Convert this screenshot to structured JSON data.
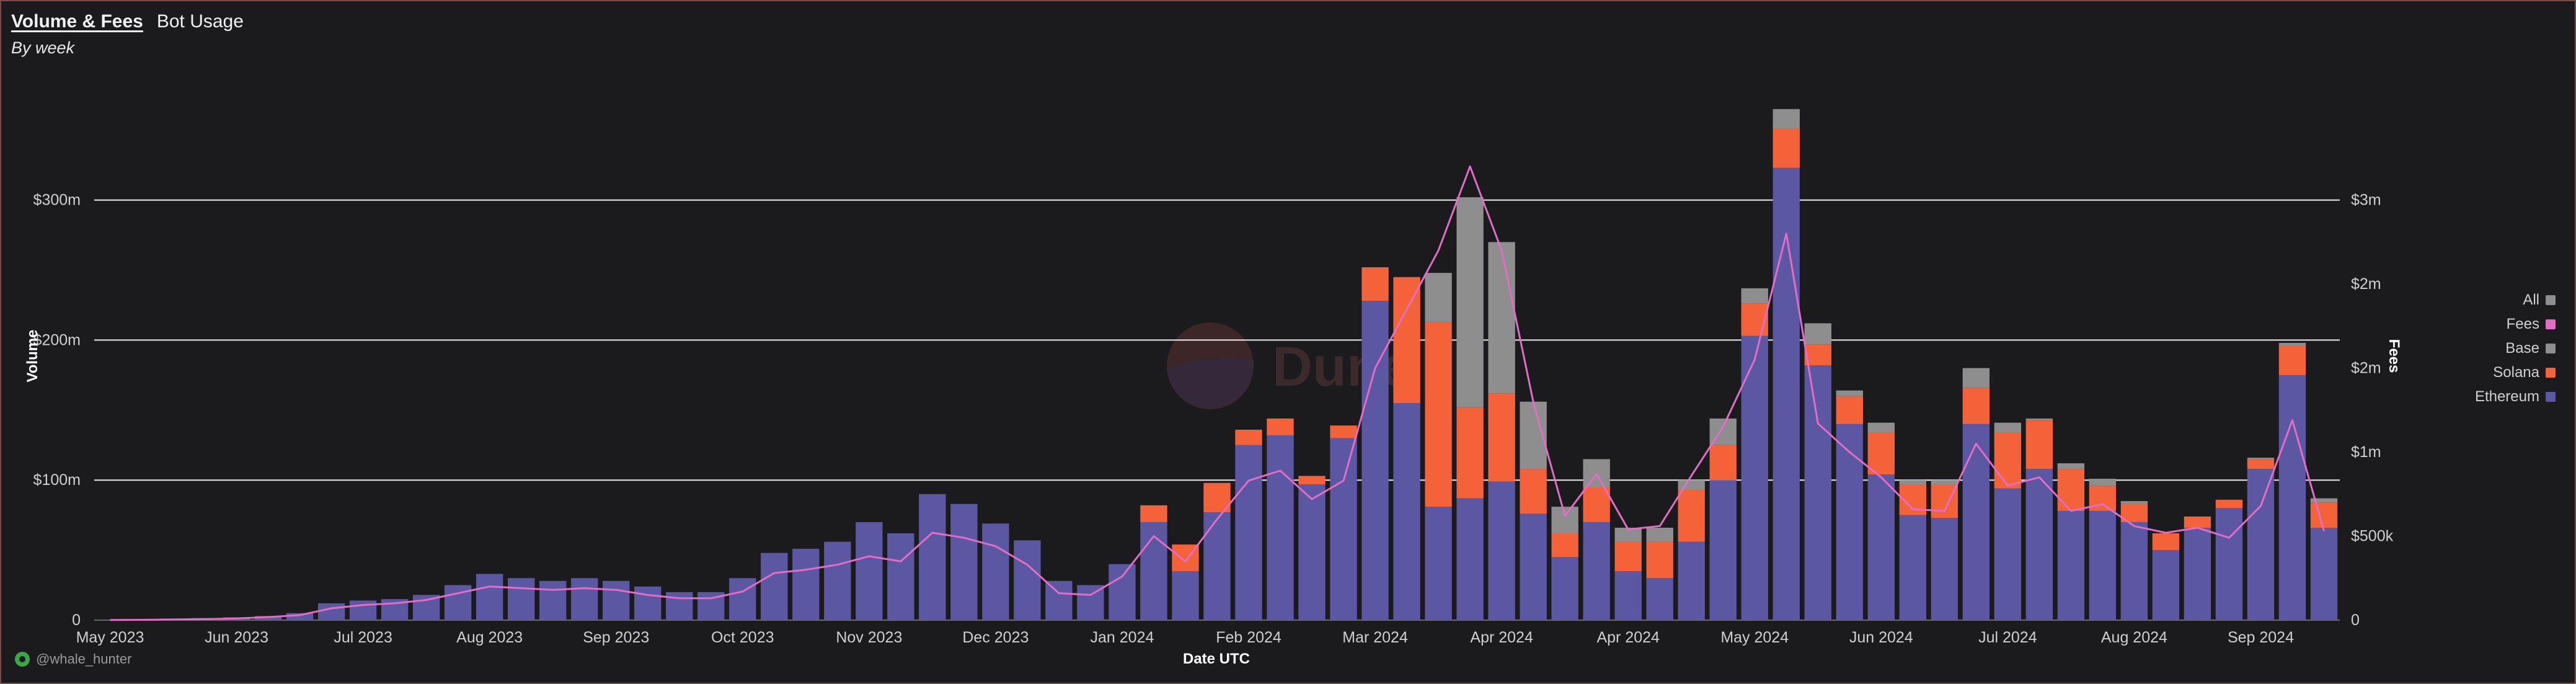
{
  "tabs": [
    {
      "label": "Volume & Fees",
      "active": true
    },
    {
      "label": "Bot Usage",
      "active": false
    }
  ],
  "subtitle": "By week",
  "credit": "@whale_hunter",
  "watermark": "Dune",
  "colors": {
    "ethereum": "#5b57a2",
    "solana": "#f4623a",
    "base": "#8e8e8e",
    "fees": "#e26dc4",
    "all": "#8e8e8e"
  },
  "chart_data": {
    "type": "bar",
    "stacked": true,
    "xlabel": "Date UTC",
    "ylabel": "Volume",
    "y2label": "Fees",
    "ylim": [
      0,
      380
    ],
    "y2lim": [
      0,
      3166667
    ],
    "yticks": [
      {
        "value": 0,
        "label": "0"
      },
      {
        "value": 100,
        "label": "$100m"
      },
      {
        "value": 200,
        "label": "$200m"
      },
      {
        "value": 300,
        "label": "$300m"
      }
    ],
    "y2ticks": [
      {
        "value": 0,
        "label": "0"
      },
      {
        "value": 500000,
        "label": "$500k"
      },
      {
        "value": 1000000,
        "label": "$1m"
      },
      {
        "value": 1500000,
        "label": "$2m"
      },
      {
        "value": 2000000,
        "label": "$2m"
      },
      {
        "value": 2500000,
        "label": "$3m"
      }
    ],
    "xticks": [
      {
        "index": 0,
        "label": "May 2023"
      },
      {
        "index": 4,
        "label": "Jun 2023"
      },
      {
        "index": 8,
        "label": "Jul 2023"
      },
      {
        "index": 12,
        "label": "Aug 2023"
      },
      {
        "index": 16,
        "label": "Sep 2023"
      },
      {
        "index": 20,
        "label": "Oct 2023"
      },
      {
        "index": 24,
        "label": "Nov 2023"
      },
      {
        "index": 28,
        "label": "Dec 2023"
      },
      {
        "index": 32,
        "label": "Jan 2024"
      },
      {
        "index": 36,
        "label": "Feb 2024"
      },
      {
        "index": 40,
        "label": "Mar 2024"
      },
      {
        "index": 44,
        "label": "Apr 2024"
      },
      {
        "index": 48,
        "label": "Apr 2024"
      },
      {
        "index": 52,
        "label": "May 2024"
      },
      {
        "index": 56,
        "label": "Jun 2024"
      },
      {
        "index": 60,
        "label": "Jul 2024"
      },
      {
        "index": 64,
        "label": "Aug 2024"
      },
      {
        "index": 68,
        "label": "Sep 2024"
      }
    ],
    "grid": "horizontal",
    "legend_position": "right",
    "legend": [
      "All",
      "Fees",
      "Base",
      "Solana",
      "Ethereum"
    ],
    "series": [
      {
        "name": "Ethereum",
        "values": [
          0.3,
          0.5,
          1,
          1.5,
          2,
          3,
          5,
          12,
          14,
          15,
          18,
          25,
          33,
          30,
          28,
          30,
          28,
          24,
          20,
          20,
          30,
          48,
          51,
          56,
          70,
          62,
          90,
          83,
          69,
          57,
          28,
          25,
          40,
          70,
          35,
          77,
          125,
          132,
          97,
          130,
          228,
          155,
          81,
          87,
          99,
          76,
          45,
          70,
          35,
          30,
          56,
          100,
          203,
          323,
          182,
          140,
          104,
          75,
          73,
          140,
          94,
          108,
          78,
          78,
          70,
          50,
          66,
          80,
          108,
          175,
          66
        ]
      },
      {
        "name": "Solana",
        "values": [
          0,
          0,
          0,
          0,
          0,
          0,
          0,
          0,
          0,
          0,
          0,
          0,
          0,
          0,
          0,
          0,
          0,
          0,
          0,
          0,
          0,
          0,
          0,
          0,
          0,
          0,
          0,
          0,
          0,
          0,
          0,
          0,
          0,
          12,
          19,
          21,
          11,
          12,
          6,
          9,
          24,
          90,
          132,
          65,
          63,
          32,
          17,
          25,
          21,
          26,
          37,
          25,
          23,
          28,
          15,
          20,
          30,
          22,
          24,
          26,
          40,
          35,
          30,
          18,
          13,
          12,
          8,
          6,
          7,
          21,
          18
        ]
      },
      {
        "name": "Base",
        "values": [
          0,
          0,
          0,
          0,
          0,
          0,
          0,
          0,
          0,
          0,
          0,
          0,
          0,
          0,
          0,
          0,
          0,
          0,
          0,
          0,
          0,
          0,
          0,
          0,
          0,
          0,
          0,
          0,
          0,
          0,
          0,
          0,
          0,
          0,
          0,
          0,
          0,
          0,
          0,
          0,
          0,
          0,
          35,
          150,
          108,
          48,
          19,
          20,
          10,
          10,
          7,
          19,
          11,
          14,
          15,
          4,
          7,
          3,
          3,
          14,
          7,
          1,
          4,
          5,
          2,
          0,
          0,
          0,
          1,
          2,
          3
        ]
      },
      {
        "name": "Fees",
        "axis": "right",
        "values": [
          1000,
          2000,
          4000,
          6000,
          10000,
          18000,
          30000,
          70000,
          90000,
          100000,
          120000,
          160000,
          200000,
          190000,
          180000,
          190000,
          180000,
          150000,
          130000,
          130000,
          170000,
          280000,
          300000,
          330000,
          380000,
          350000,
          520000,
          490000,
          440000,
          330000,
          160000,
          150000,
          260000,
          500000,
          350000,
          600000,
          830000,
          890000,
          720000,
          830000,
          1500000,
          1850000,
          2200000,
          2700000,
          2200000,
          1300000,
          620000,
          870000,
          540000,
          560000,
          860000,
          1150000,
          1550000,
          2300000,
          1170000,
          1000000,
          850000,
          660000,
          650000,
          1050000,
          800000,
          850000,
          650000,
          690000,
          560000,
          520000,
          550000,
          490000,
          680000,
          1190000,
          530000
        ]
      }
    ]
  }
}
